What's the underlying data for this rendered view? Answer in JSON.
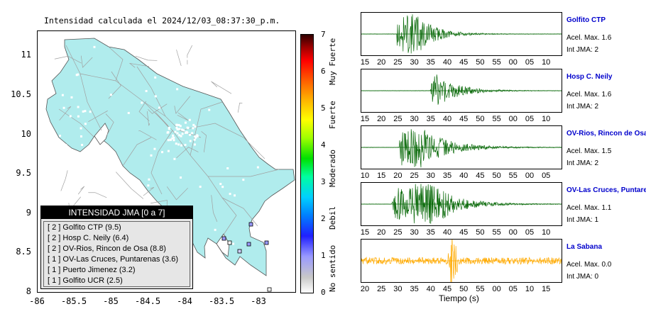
{
  "map": {
    "title": "Intensidad calculada el 2024/12/03_08:37:30_p.m.",
    "yticks": [
      "11",
      "10.5",
      "10",
      "9.5",
      "9",
      "8.5",
      "8"
    ],
    "xticks": [
      "-86",
      "-85.5",
      "-85",
      "-84.5",
      "-84",
      "-83.5",
      "-83"
    ],
    "land_color": "#b0eced",
    "road_color": "#a0a0a0"
  },
  "legend": {
    "title": "INTENSIDAD JMA [0 a 7]",
    "rows": [
      "[ 2 ]  Golfito CTP (9.5)",
      "[ 2 ]  Hosp C. Neily (6.4)",
      "[ 2 ]  OV-Rios, Rincon de Osa (8.8)",
      "[ 1 ]  OV-Las Cruces, Puntarenas (3.6)",
      "[ 1 ]  Puerto Jimenez (3.2)",
      "[ 1 ]  Golfito UCR (2.5)"
    ]
  },
  "colorbar": {
    "ticks": [
      "7",
      "6",
      "5",
      "4",
      "3",
      "2",
      "1",
      "0"
    ],
    "labels": [
      "Muy Fuerte",
      "Fuerte",
      "Moderado",
      "Debil",
      "No sentido"
    ]
  },
  "stations": [
    {
      "name": "Golfito CTP",
      "accel": "Acel. Max. 1.6",
      "jma": "Int JMA: 2",
      "ticks": [
        "15",
        "20",
        "25",
        "30",
        "35",
        "40",
        "45",
        "50",
        "55",
        "00",
        "05",
        "10"
      ]
    },
    {
      "name": "Hosp C. Neily",
      "accel": "Acel. Max. 1.6",
      "jma": "Int JMA: 2",
      "ticks": [
        "15",
        "20",
        "25",
        "30",
        "35",
        "40",
        "45",
        "50",
        "55",
        "00",
        "05",
        "10"
      ]
    },
    {
      "name": "OV-Rios, Rincon de Osa",
      "accel": "Acel. Max. 1.5",
      "jma": "Int JMA: 2",
      "ticks": [
        "10",
        "15",
        "20",
        "25",
        "30",
        "35",
        "40",
        "45",
        "50",
        "55",
        "00",
        "05"
      ]
    },
    {
      "name": "OV-Las Cruces, Puntarenas",
      "accel": "Acel. Max. 1.1",
      "jma": "Int JMA: 1",
      "ticks": [
        "15",
        "20",
        "25",
        "30",
        "35",
        "40",
        "45",
        "50",
        "55",
        "00",
        "05",
        "10"
      ]
    },
    {
      "name": "La Sabana",
      "accel": "Acel. Max. 0.0",
      "jma": "Int JMA: 0",
      "ticks": [
        "20",
        "25",
        "30",
        "35",
        "40",
        "45",
        "50",
        "55",
        "00",
        "05",
        "10",
        "15"
      ]
    }
  ],
  "xaxis_label": "Tiempo (s)",
  "colors": {
    "wave_green": "#0a6a0a",
    "wave_orange": "#ffaa00",
    "name_blue": "#0000cc"
  }
}
